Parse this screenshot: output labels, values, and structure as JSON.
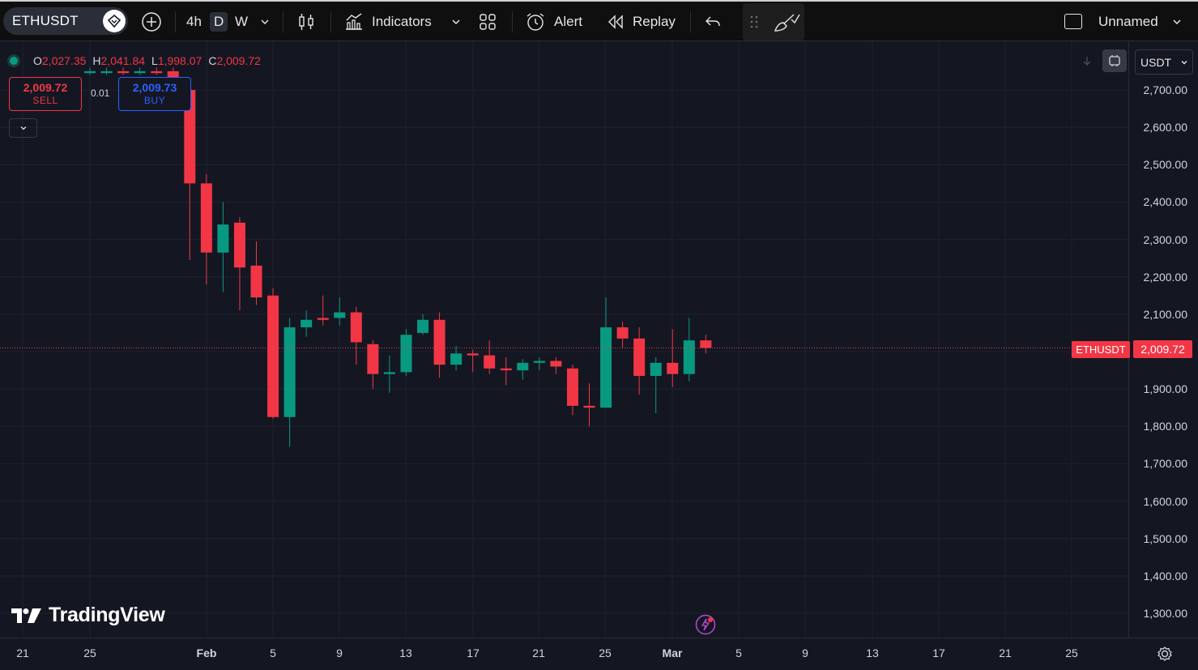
{
  "toolbar": {
    "symbol": "ETHUSDT",
    "intervals": [
      "4h",
      "D",
      "W"
    ],
    "indicators_label": "Indicators",
    "alert_label": "Alert",
    "replay_label": "Replay",
    "layout_name": "Unnamed"
  },
  "legend": {
    "o_key": "O",
    "o_val": "2,027.35",
    "h_key": "H",
    "h_val": "2,041.84",
    "l_key": "L",
    "l_val": "1,998.07",
    "c_key": "C",
    "c_val": "2,009.72"
  },
  "trade": {
    "sell_price": "2,009.72",
    "sell_label": "SELL",
    "quantity": "0.01",
    "buy_price": "2,009.73",
    "buy_label": "BUY"
  },
  "axis": {
    "currency": "USDT",
    "y_labels": [
      "2,700.00",
      "2,600.00",
      "2,500.00",
      "2,400.00",
      "2,300.00",
      "2,200.00",
      "2,100.00",
      "1,900.00",
      "1,800.00",
      "1,700.00",
      "1,600.00",
      "1,500.00",
      "1,400.00",
      "1,300.00"
    ],
    "x_labels": [
      {
        "text": "21",
        "bold": false
      },
      {
        "text": "25",
        "bold": false
      },
      {
        "text": "Feb",
        "bold": true
      },
      {
        "text": "5",
        "bold": false
      },
      {
        "text": "9",
        "bold": false
      },
      {
        "text": "13",
        "bold": false
      },
      {
        "text": "17",
        "bold": false
      },
      {
        "text": "21",
        "bold": false
      },
      {
        "text": "25",
        "bold": false
      },
      {
        "text": "Mar",
        "bold": true
      },
      {
        "text": "5",
        "bold": false
      },
      {
        "text": "9",
        "bold": false
      },
      {
        "text": "13",
        "bold": false
      },
      {
        "text": "17",
        "bold": false
      },
      {
        "text": "21",
        "bold": false
      },
      {
        "text": "25",
        "bold": false
      }
    ]
  },
  "price_tag": {
    "symbol": "ETHUSDT",
    "price": "2,009.72"
  },
  "brand": "TradingView",
  "colors": {
    "up": "#089981",
    "down": "#f23645",
    "background": "#141722",
    "grid": "#1e2230"
  },
  "chart_data": {
    "type": "candlestick",
    "ylim": [
      1270,
      2780
    ],
    "candles": [
      {
        "o": 2745,
        "h": 2760,
        "l": 2740,
        "c": 2750
      },
      {
        "o": 2745,
        "h": 2760,
        "l": 2740,
        "c": 2750
      },
      {
        "o": 2750,
        "h": 2760,
        "l": 2740,
        "c": 2745
      },
      {
        "o": 2745,
        "h": 2760,
        "l": 2740,
        "c": 2750
      },
      {
        "o": 2750,
        "h": 2760,
        "l": 2740,
        "c": 2745
      },
      {
        "o": 2750,
        "h": 2760,
        "l": 2690,
        "c": 2700
      },
      {
        "o": 2700,
        "h": 2710,
        "l": 2245,
        "c": 2450
      },
      {
        "o": 2450,
        "h": 2475,
        "l": 2180,
        "c": 2265
      },
      {
        "o": 2265,
        "h": 2400,
        "l": 2160,
        "c": 2340
      },
      {
        "o": 2345,
        "h": 2360,
        "l": 2110,
        "c": 2225
      },
      {
        "o": 2230,
        "h": 2295,
        "l": 2125,
        "c": 2145
      },
      {
        "o": 2150,
        "h": 2170,
        "l": 1820,
        "c": 1825
      },
      {
        "o": 1825,
        "h": 2090,
        "l": 1745,
        "c": 2065
      },
      {
        "o": 2065,
        "h": 2110,
        "l": 2040,
        "c": 2085
      },
      {
        "o": 2090,
        "h": 2150,
        "l": 2070,
        "c": 2085
      },
      {
        "o": 2090,
        "h": 2145,
        "l": 2070,
        "c": 2105
      },
      {
        "o": 2105,
        "h": 2120,
        "l": 1965,
        "c": 2025
      },
      {
        "o": 2020,
        "h": 2030,
        "l": 1900,
        "c": 1940
      },
      {
        "o": 1940,
        "h": 1990,
        "l": 1890,
        "c": 1945
      },
      {
        "o": 1945,
        "h": 2060,
        "l": 1935,
        "c": 2045
      },
      {
        "o": 2050,
        "h": 2100,
        "l": 2045,
        "c": 2085
      },
      {
        "o": 2085,
        "h": 2105,
        "l": 1930,
        "c": 1965
      },
      {
        "o": 1965,
        "h": 2015,
        "l": 1950,
        "c": 1995
      },
      {
        "o": 1995,
        "h": 2005,
        "l": 1945,
        "c": 1990
      },
      {
        "o": 1990,
        "h": 2030,
        "l": 1940,
        "c": 1955
      },
      {
        "o": 1955,
        "h": 1985,
        "l": 1910,
        "c": 1950
      },
      {
        "o": 1950,
        "h": 1980,
        "l": 1925,
        "c": 1970
      },
      {
        "o": 1970,
        "h": 1985,
        "l": 1950,
        "c": 1975
      },
      {
        "o": 1975,
        "h": 1985,
        "l": 1940,
        "c": 1960
      },
      {
        "o": 1955,
        "h": 1965,
        "l": 1830,
        "c": 1855
      },
      {
        "o": 1855,
        "h": 1915,
        "l": 1800,
        "c": 1850
      },
      {
        "o": 1850,
        "h": 2145,
        "l": 1850,
        "c": 2065
      },
      {
        "o": 2065,
        "h": 2080,
        "l": 2010,
        "c": 2035
      },
      {
        "o": 2035,
        "h": 2065,
        "l": 1885,
        "c": 1935
      },
      {
        "o": 1935,
        "h": 1985,
        "l": 1835,
        "c": 1970
      },
      {
        "o": 1970,
        "h": 2060,
        "l": 1905,
        "c": 1940
      },
      {
        "o": 1940,
        "h": 2090,
        "l": 1920,
        "c": 2030
      },
      {
        "o": 2030,
        "h": 2045,
        "l": 1995,
        "c": 2010
      }
    ]
  }
}
